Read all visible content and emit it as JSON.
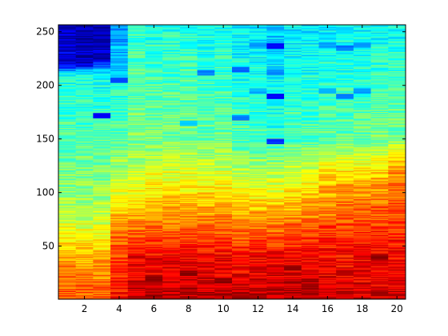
{
  "chart_data": {
    "type": "heatmap",
    "title": "",
    "xlabel": "",
    "ylabel": "",
    "x_range": [
      0.5,
      20.5
    ],
    "y_range": [
      0.5,
      256.5
    ],
    "columns": 20,
    "rows": 256,
    "colormap": "jet",
    "grid": false,
    "legend": "none",
    "x_ticks": [
      2,
      4,
      6,
      8,
      10,
      12,
      14,
      16,
      18,
      20
    ],
    "y_ticks": [
      50,
      100,
      150,
      200,
      250
    ],
    "column_profiles": [
      {
        "column": 1,
        "values_by_height": [
          [
            0,
            0.8
          ],
          [
            40,
            0.72
          ],
          [
            80,
            0.55
          ],
          [
            150,
            0.45
          ],
          [
            210,
            0.4
          ],
          [
            220,
            0.1
          ],
          [
            256,
            0.06
          ]
        ]
      },
      {
        "column": 2,
        "values_by_height": [
          [
            0,
            0.8
          ],
          [
            40,
            0.7
          ],
          [
            80,
            0.55
          ],
          [
            150,
            0.45
          ],
          [
            210,
            0.4
          ],
          [
            220,
            0.08
          ],
          [
            256,
            0.03
          ]
        ]
      },
      {
        "column": 3,
        "values_by_height": [
          [
            0,
            0.8
          ],
          [
            40,
            0.7
          ],
          [
            80,
            0.55
          ],
          [
            150,
            0.45
          ],
          [
            210,
            0.38
          ],
          [
            225,
            0.08
          ],
          [
            256,
            0.04
          ]
        ]
      },
      {
        "column": 4,
        "values_by_height": [
          [
            0,
            0.88
          ],
          [
            60,
            0.78
          ],
          [
            100,
            0.6
          ],
          [
            150,
            0.46
          ],
          [
            200,
            0.4
          ],
          [
            225,
            0.3
          ],
          [
            256,
            0.28
          ]
        ]
      },
      {
        "column": 5,
        "values_by_height": [
          [
            0,
            0.94
          ],
          [
            40,
            0.88
          ],
          [
            100,
            0.62
          ],
          [
            150,
            0.5
          ],
          [
            256,
            0.42
          ]
        ]
      },
      {
        "column": 6,
        "values_by_height": [
          [
            0,
            0.95
          ],
          [
            40,
            0.88
          ],
          [
            100,
            0.65
          ],
          [
            150,
            0.5
          ],
          [
            256,
            0.4
          ]
        ]
      },
      {
        "column": 7,
        "values_by_height": [
          [
            0,
            0.95
          ],
          [
            40,
            0.88
          ],
          [
            100,
            0.65
          ],
          [
            150,
            0.5
          ],
          [
            256,
            0.4
          ]
        ]
      },
      {
        "column": 8,
        "values_by_height": [
          [
            0,
            0.95
          ],
          [
            40,
            0.88
          ],
          [
            100,
            0.65
          ],
          [
            150,
            0.5
          ],
          [
            256,
            0.4
          ]
        ]
      },
      {
        "column": 9,
        "values_by_height": [
          [
            0,
            0.95
          ],
          [
            40,
            0.88
          ],
          [
            100,
            0.65
          ],
          [
            150,
            0.48
          ],
          [
            256,
            0.38
          ]
        ]
      },
      {
        "column": 10,
        "values_by_height": [
          [
            0,
            0.95
          ],
          [
            40,
            0.88
          ],
          [
            100,
            0.65
          ],
          [
            150,
            0.48
          ],
          [
            256,
            0.4
          ]
        ]
      },
      {
        "column": 11,
        "values_by_height": [
          [
            0,
            0.94
          ],
          [
            40,
            0.86
          ],
          [
            100,
            0.62
          ],
          [
            150,
            0.45
          ],
          [
            256,
            0.36
          ]
        ]
      },
      {
        "column": 12,
        "values_by_height": [
          [
            0,
            0.94
          ],
          [
            40,
            0.88
          ],
          [
            100,
            0.62
          ],
          [
            150,
            0.45
          ],
          [
            256,
            0.35
          ]
        ]
      },
      {
        "column": 13,
        "values_by_height": [
          [
            0,
            0.95
          ],
          [
            40,
            0.88
          ],
          [
            100,
            0.62
          ],
          [
            150,
            0.42
          ],
          [
            256,
            0.32
          ]
        ]
      },
      {
        "column": 14,
        "values_by_height": [
          [
            0,
            0.95
          ],
          [
            40,
            0.88
          ],
          [
            100,
            0.65
          ],
          [
            150,
            0.45
          ],
          [
            256,
            0.35
          ]
        ]
      },
      {
        "column": 15,
        "values_by_height": [
          [
            0,
            0.95
          ],
          [
            40,
            0.88
          ],
          [
            100,
            0.68
          ],
          [
            150,
            0.45
          ],
          [
            256,
            0.35
          ]
        ]
      },
      {
        "column": 16,
        "values_by_height": [
          [
            0,
            0.92
          ],
          [
            50,
            0.86
          ],
          [
            110,
            0.68
          ],
          [
            150,
            0.48
          ],
          [
            256,
            0.36
          ]
        ]
      },
      {
        "column": 17,
        "values_by_height": [
          [
            0,
            0.92
          ],
          [
            50,
            0.86
          ],
          [
            110,
            0.7
          ],
          [
            150,
            0.48
          ],
          [
            256,
            0.36
          ]
        ]
      },
      {
        "column": 18,
        "values_by_height": [
          [
            0,
            0.92
          ],
          [
            50,
            0.86
          ],
          [
            110,
            0.7
          ],
          [
            150,
            0.48
          ],
          [
            256,
            0.36
          ]
        ]
      },
      {
        "column": 19,
        "values_by_height": [
          [
            0,
            0.92
          ],
          [
            50,
            0.86
          ],
          [
            110,
            0.72
          ],
          [
            150,
            0.5
          ],
          [
            256,
            0.38
          ]
        ]
      },
      {
        "column": 20,
        "values_by_height": [
          [
            0,
            0.92
          ],
          [
            50,
            0.86
          ],
          [
            120,
            0.74
          ],
          [
            150,
            0.5
          ],
          [
            256,
            0.38
          ]
        ]
      }
    ],
    "low_value_spots": [
      {
        "column": 13,
        "height": 237,
        "value": 0.12
      },
      {
        "column": 13,
        "height": 190,
        "value": 0.12
      },
      {
        "column": 13,
        "height": 148,
        "value": 0.18
      },
      {
        "column": 13,
        "height": 212,
        "value": 0.26
      },
      {
        "column": 11,
        "height": 215,
        "value": 0.22
      },
      {
        "column": 11,
        "height": 170,
        "value": 0.25
      },
      {
        "column": 9,
        "height": 212,
        "value": 0.26
      },
      {
        "column": 8,
        "height": 165,
        "value": 0.32
      },
      {
        "column": 12,
        "height": 238,
        "value": 0.28
      },
      {
        "column": 12,
        "height": 195,
        "value": 0.3
      },
      {
        "column": 16,
        "height": 238,
        "value": 0.28
      },
      {
        "column": 16,
        "height": 195,
        "value": 0.3
      },
      {
        "column": 17,
        "height": 235,
        "value": 0.24
      },
      {
        "column": 17,
        "height": 190,
        "value": 0.26
      },
      {
        "column": 18,
        "height": 238,
        "value": 0.28
      },
      {
        "column": 18,
        "height": 195,
        "value": 0.28
      },
      {
        "column": 3,
        "height": 172,
        "value": 0.12
      },
      {
        "column": 4,
        "height": 205,
        "value": 0.2
      }
    ],
    "high_value_spots": [
      {
        "column": 8,
        "height": 25,
        "value": 0.99
      },
      {
        "column": 10,
        "height": 18,
        "value": 0.99
      },
      {
        "column": 14,
        "height": 30,
        "value": 0.99
      },
      {
        "column": 6,
        "height": 20,
        "value": 0.98
      },
      {
        "column": 19,
        "height": 40,
        "value": 0.98
      }
    ]
  }
}
